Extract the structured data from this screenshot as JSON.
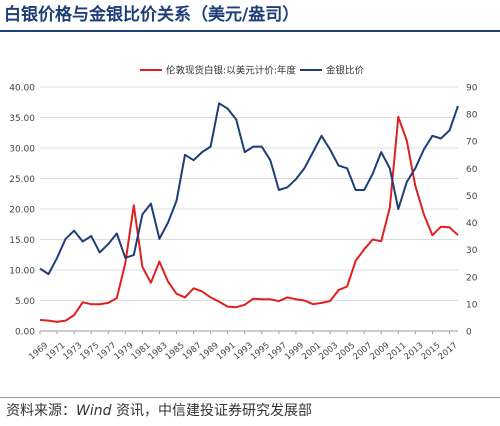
{
  "title": "白银价格与金银比价关系（美元/盎司）",
  "source": {
    "prefix": "资料来源：",
    "wind": "Wind",
    "rest": " 资讯，中信建投证券研究发展部"
  },
  "chart_data": {
    "type": "line",
    "x": [
      1969,
      1970,
      1971,
      1972,
      1973,
      1974,
      1975,
      1976,
      1977,
      1978,
      1979,
      1980,
      1981,
      1982,
      1983,
      1984,
      1985,
      1986,
      1987,
      1988,
      1989,
      1990,
      1991,
      1992,
      1993,
      1994,
      1995,
      1996,
      1997,
      1998,
      1999,
      2000,
      2001,
      2002,
      2003,
      2004,
      2005,
      2006,
      2007,
      2008,
      2009,
      2010,
      2011,
      2012,
      2013,
      2014,
      2015,
      2016,
      2017,
      2018
    ],
    "x_ticks": [
      "1969",
      "1971",
      "1973",
      "1975",
      "1977",
      "1979",
      "1981",
      "1983",
      "1985",
      "1987",
      "1989",
      "1991",
      "1993",
      "1995",
      "1997",
      "1999",
      "2001",
      "2003",
      "2005",
      "2007",
      "2009",
      "2011",
      "2013",
      "2015",
      "2017"
    ],
    "left_axis": {
      "ylim": [
        0,
        40
      ],
      "ticks": [
        "0.00",
        "5.00",
        "10.00",
        "15.00",
        "20.00",
        "25.00",
        "30.00",
        "35.00",
        "40.00"
      ]
    },
    "right_axis": {
      "ylim": [
        0,
        90
      ],
      "ticks": [
        "0",
        "10",
        "20",
        "30",
        "40",
        "50",
        "60",
        "70",
        "80",
        "90"
      ]
    },
    "grid": true,
    "legend_position": "top-center",
    "series": [
      {
        "name": "伦敦现货白银:以美元计价:年度",
        "axis": "left",
        "color": "#e02020",
        "values": [
          1.8,
          1.7,
          1.5,
          1.7,
          2.6,
          4.7,
          4.4,
          4.4,
          4.6,
          5.4,
          11.1,
          20.6,
          10.5,
          7.9,
          11.4,
          8.1,
          6.1,
          5.5,
          7.0,
          6.5,
          5.5,
          4.8,
          4.0,
          3.9,
          4.3,
          5.3,
          5.2,
          5.2,
          4.9,
          5.5,
          5.2,
          5.0,
          4.4,
          4.6,
          4.9,
          6.7,
          7.3,
          11.5,
          13.4,
          15.0,
          14.7,
          20.2,
          35.1,
          31.2,
          23.8,
          19.1,
          15.7,
          17.1,
          17.0,
          15.7
        ]
      },
      {
        "name": "金银比价",
        "axis": "right",
        "color": "#1f3e78",
        "values": [
          23,
          21,
          27,
          34,
          37,
          33,
          35,
          29,
          32,
          36,
          27,
          28,
          43,
          47,
          34,
          40,
          48,
          65,
          63,
          66,
          68,
          84,
          82,
          78,
          66,
          68,
          68,
          63,
          52,
          53,
          56,
          60,
          66,
          72,
          67,
          61,
          60,
          52,
          52,
          58,
          66,
          60,
          45,
          55,
          60,
          67,
          72,
          71,
          74,
          83
        ]
      }
    ]
  }
}
